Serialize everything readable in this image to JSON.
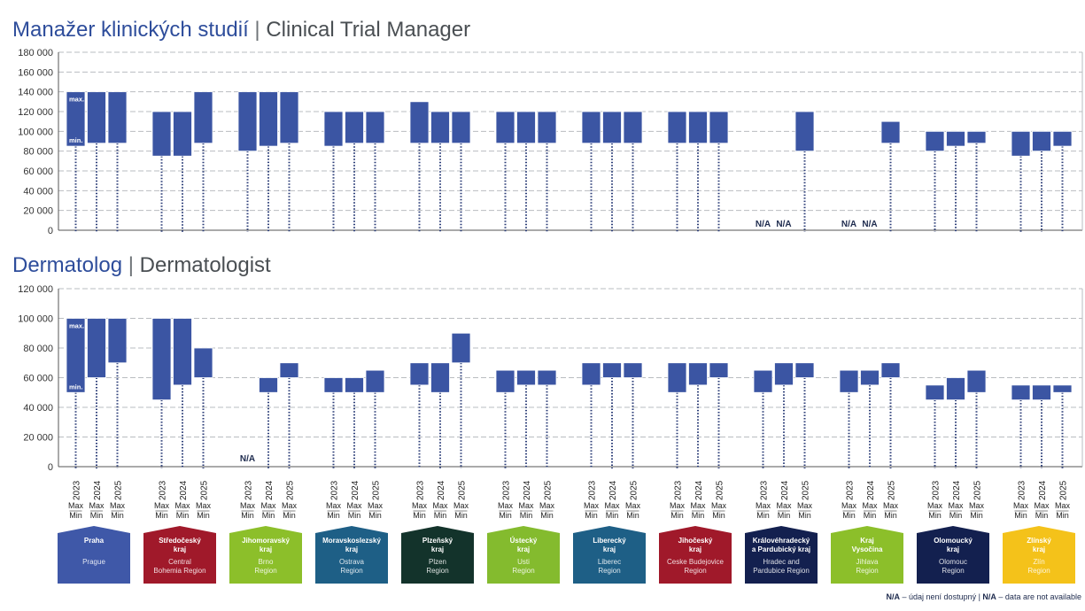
{
  "legend_note": {
    "na": "N/A",
    "cz": " – údaj není dostupný | ",
    "en": " – data are not available"
  },
  "labels": {
    "max": "max.",
    "min": "min.",
    "max_short": "Max",
    "min_short": "Min",
    "na": "N/A"
  },
  "years": [
    "2023",
    "2024",
    "2025"
  ],
  "regions": [
    {
      "name": [
        "Praha"
      ],
      "en": [
        "Prague"
      ],
      "color": "#3f58a8"
    },
    {
      "name": [
        "Středočeský",
        "kraj"
      ],
      "en": [
        "Central",
        "Bohemia Region"
      ],
      "color": "#a0192a"
    },
    {
      "name": [
        "Jihomoravský",
        "kraj"
      ],
      "en": [
        "Brno",
        "Region"
      ],
      "color": "#8cbf2a"
    },
    {
      "name": [
        "Moravskoslezský",
        "kraj"
      ],
      "en": [
        "Ostrava",
        "Region"
      ],
      "color": "#1e5f86"
    },
    {
      "name": [
        "Plzeňský",
        "kraj"
      ],
      "en": [
        "Plzen",
        "Region"
      ],
      "color": "#13332b"
    },
    {
      "name": [
        "Ústecký",
        "kraj"
      ],
      "en": [
        "Usti",
        "Region"
      ],
      "color": "#84bb2e"
    },
    {
      "name": [
        "Liberecký",
        "kraj"
      ],
      "en": [
        "Liberec",
        "Region"
      ],
      "color": "#1e5f86"
    },
    {
      "name": [
        "Jihočeský",
        "kraj"
      ],
      "en": [
        "Ceske Budejovice",
        "Region"
      ],
      "color": "#a0192a"
    },
    {
      "name": [
        "Královéhradecký",
        "a Pardubický kraj"
      ],
      "en": [
        "Hradec and",
        "Pardubice Region"
      ],
      "color": "#13204f"
    },
    {
      "name": [
        "Kraj",
        "Vysočina"
      ],
      "en": [
        "Jihlava",
        "Region"
      ],
      "color": "#8cbf2a"
    },
    {
      "name": [
        "Olomoucký",
        "kraj"
      ],
      "en": [
        "Olomouc",
        "Region"
      ],
      "color": "#13204f"
    },
    {
      "name": [
        "Zlínský",
        "kraj"
      ],
      "en": [
        "Zlín",
        "Region"
      ],
      "color": "#f4c21a"
    }
  ],
  "chart_data": [
    {
      "type": "range-bar",
      "title_cz": "Manažer klinických studií",
      "title_sep": " | ",
      "title_en": "Clinical Trial Manager",
      "ylim": [
        0,
        180000
      ],
      "yticks": [
        "0",
        "20 000",
        "40 000",
        "60 000",
        "80 000",
        "100 000",
        "120 000",
        "140 000",
        "160 000",
        "180 000"
      ],
      "bar_color": "#3b55a3",
      "groups": [
        [
          [
            85000,
            140000
          ],
          [
            88000,
            140000
          ],
          [
            88000,
            140000
          ]
        ],
        [
          [
            75000,
            120000
          ],
          [
            75000,
            120000
          ],
          [
            88000,
            140000
          ]
        ],
        [
          [
            80000,
            140000
          ],
          [
            85000,
            140000
          ],
          [
            88000,
            140000
          ]
        ],
        [
          [
            85000,
            120000
          ],
          [
            88000,
            120000
          ],
          [
            88000,
            120000
          ]
        ],
        [
          [
            88000,
            130000
          ],
          [
            88000,
            120000
          ],
          [
            88000,
            120000
          ]
        ],
        [
          [
            88000,
            120000
          ],
          [
            88000,
            120000
          ],
          [
            88000,
            120000
          ]
        ],
        [
          [
            88000,
            120000
          ],
          [
            88000,
            120000
          ],
          [
            88000,
            120000
          ]
        ],
        [
          [
            88000,
            120000
          ],
          [
            88000,
            120000
          ],
          [
            88000,
            120000
          ]
        ],
        [
          null,
          null,
          [
            80000,
            120000
          ]
        ],
        [
          null,
          null,
          [
            88000,
            110000
          ]
        ],
        [
          [
            80000,
            100000
          ],
          [
            85000,
            100000
          ],
          [
            88000,
            100000
          ]
        ],
        [
          [
            75000,
            100000
          ],
          [
            80000,
            100000
          ],
          [
            85000,
            100000
          ]
        ]
      ]
    },
    {
      "type": "range-bar",
      "title_cz": "Dermatolog",
      "title_sep": " | ",
      "title_en": "Dermatologist",
      "ylim": [
        0,
        120000
      ],
      "yticks": [
        "0",
        "20 000",
        "40 000",
        "60 000",
        "80 000",
        "100 000",
        "120 000"
      ],
      "bar_color": "#3b55a3",
      "groups": [
        [
          [
            50000,
            100000
          ],
          [
            60000,
            100000
          ],
          [
            70000,
            100000
          ]
        ],
        [
          [
            45000,
            100000
          ],
          [
            55000,
            100000
          ],
          [
            60000,
            80000
          ]
        ],
        [
          null,
          [
            50000,
            60000
          ],
          [
            60000,
            70000
          ]
        ],
        [
          [
            50000,
            60000
          ],
          [
            50000,
            60000
          ],
          [
            50000,
            65000
          ]
        ],
        [
          [
            55000,
            70000
          ],
          [
            50000,
            70000
          ],
          [
            70000,
            90000
          ]
        ],
        [
          [
            50000,
            65000
          ],
          [
            55000,
            65000
          ],
          [
            55000,
            65000
          ]
        ],
        [
          [
            55000,
            70000
          ],
          [
            60000,
            70000
          ],
          [
            60000,
            70000
          ]
        ],
        [
          [
            50000,
            70000
          ],
          [
            55000,
            70000
          ],
          [
            60000,
            70000
          ]
        ],
        [
          [
            50000,
            65000
          ],
          [
            55000,
            70000
          ],
          [
            60000,
            70000
          ]
        ],
        [
          [
            50000,
            65000
          ],
          [
            55000,
            65000
          ],
          [
            60000,
            70000
          ]
        ],
        [
          [
            45000,
            55000
          ],
          [
            45000,
            60000
          ],
          [
            50000,
            65000
          ]
        ],
        [
          [
            45000,
            55000
          ],
          [
            45000,
            55000
          ],
          [
            50000,
            55000
          ]
        ]
      ]
    }
  ]
}
